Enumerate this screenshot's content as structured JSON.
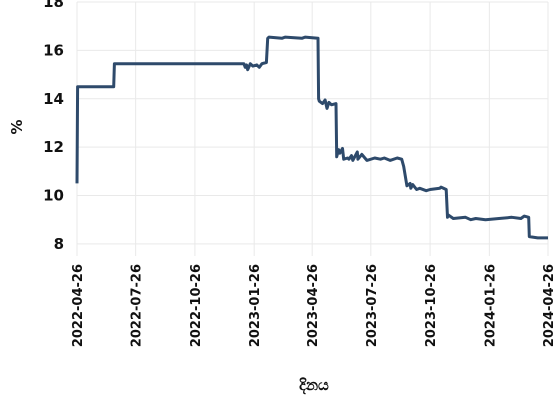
{
  "chart_data": {
    "type": "line",
    "title": "",
    "xlabel": "දිනය",
    "ylabel": "%",
    "ylim": [
      7.5,
      18
    ],
    "y_ticks": [
      8,
      10,
      12,
      14,
      16,
      18
    ],
    "x_ticks": [
      "2022-04-26",
      "2022-07-26",
      "2022-10-26",
      "2023-01-26",
      "2023-04-26",
      "2023-07-26",
      "2023-10-26",
      "2024-01-26",
      "2024-04-26"
    ],
    "xlim": [
      "2022-04-26",
      "2024-04-26"
    ],
    "grid": true,
    "line_color": "#2e4a6b",
    "series": [
      {
        "name": "",
        "x": [
          "2022-04-26",
          "2022-04-27",
          "2022-06-22",
          "2022-06-23",
          "2023-01-10",
          "2023-01-12",
          "2023-01-14",
          "2023-01-16",
          "2023-01-20",
          "2023-01-24",
          "2023-01-30",
          "2023-02-03",
          "2023-02-07",
          "2023-02-14",
          "2023-02-16",
          "2023-02-18",
          "2023-03-10",
          "2023-03-15",
          "2023-04-10",
          "2023-04-15",
          "2023-05-05",
          "2023-05-06",
          "2023-05-07",
          "2023-05-12",
          "2023-05-16",
          "2023-05-19",
          "2023-05-22",
          "2023-05-26",
          "2023-06-02",
          "2023-06-03",
          "2023-06-06",
          "2023-06-08",
          "2023-06-12",
          "2023-06-14",
          "2023-06-20",
          "2023-06-22",
          "2023-06-26",
          "2023-06-28",
          "2023-07-05",
          "2023-07-06",
          "2023-07-12",
          "2023-07-20",
          "2023-08-01",
          "2023-08-10",
          "2023-08-16",
          "2023-08-25",
          "2023-09-05",
          "2023-09-12",
          "2023-09-15",
          "2023-09-20",
          "2023-09-25",
          "2023-09-26",
          "2023-09-29",
          "2023-10-05",
          "2023-10-10",
          "2023-10-20",
          "2023-10-26",
          "2023-11-10",
          "2023-11-12",
          "2023-11-20",
          "2023-11-22",
          "2023-11-23",
          "2023-12-01",
          "2023-12-20",
          "2023-12-28",
          "2024-01-05",
          "2024-01-20",
          "2024-02-10",
          "2024-03-01",
          "2024-03-15",
          "2024-03-20",
          "2024-03-27",
          "2024-03-28",
          "2024-04-10",
          "2024-04-20",
          "2024-04-26"
        ],
        "y": [
          10.5,
          14.5,
          14.5,
          15.45,
          15.45,
          15.3,
          15.4,
          15.2,
          15.45,
          15.35,
          15.4,
          15.3,
          15.45,
          15.5,
          16.5,
          16.55,
          16.5,
          16.55,
          16.5,
          16.55,
          16.5,
          14.0,
          13.9,
          13.8,
          13.95,
          13.6,
          13.85,
          13.75,
          13.8,
          11.6,
          11.9,
          11.75,
          11.95,
          11.5,
          11.55,
          11.5,
          11.65,
          11.45,
          11.8,
          11.5,
          11.7,
          11.45,
          11.55,
          11.5,
          11.55,
          11.45,
          11.55,
          11.5,
          11.2,
          10.4,
          10.5,
          10.3,
          10.45,
          10.25,
          10.3,
          10.2,
          10.25,
          10.3,
          10.35,
          10.25,
          9.1,
          9.2,
          9.05,
          9.1,
          9.0,
          9.05,
          9.0,
          9.05,
          9.1,
          9.05,
          9.15,
          9.1,
          8.3,
          8.25,
          8.25,
          8.25
        ]
      }
    ]
  }
}
